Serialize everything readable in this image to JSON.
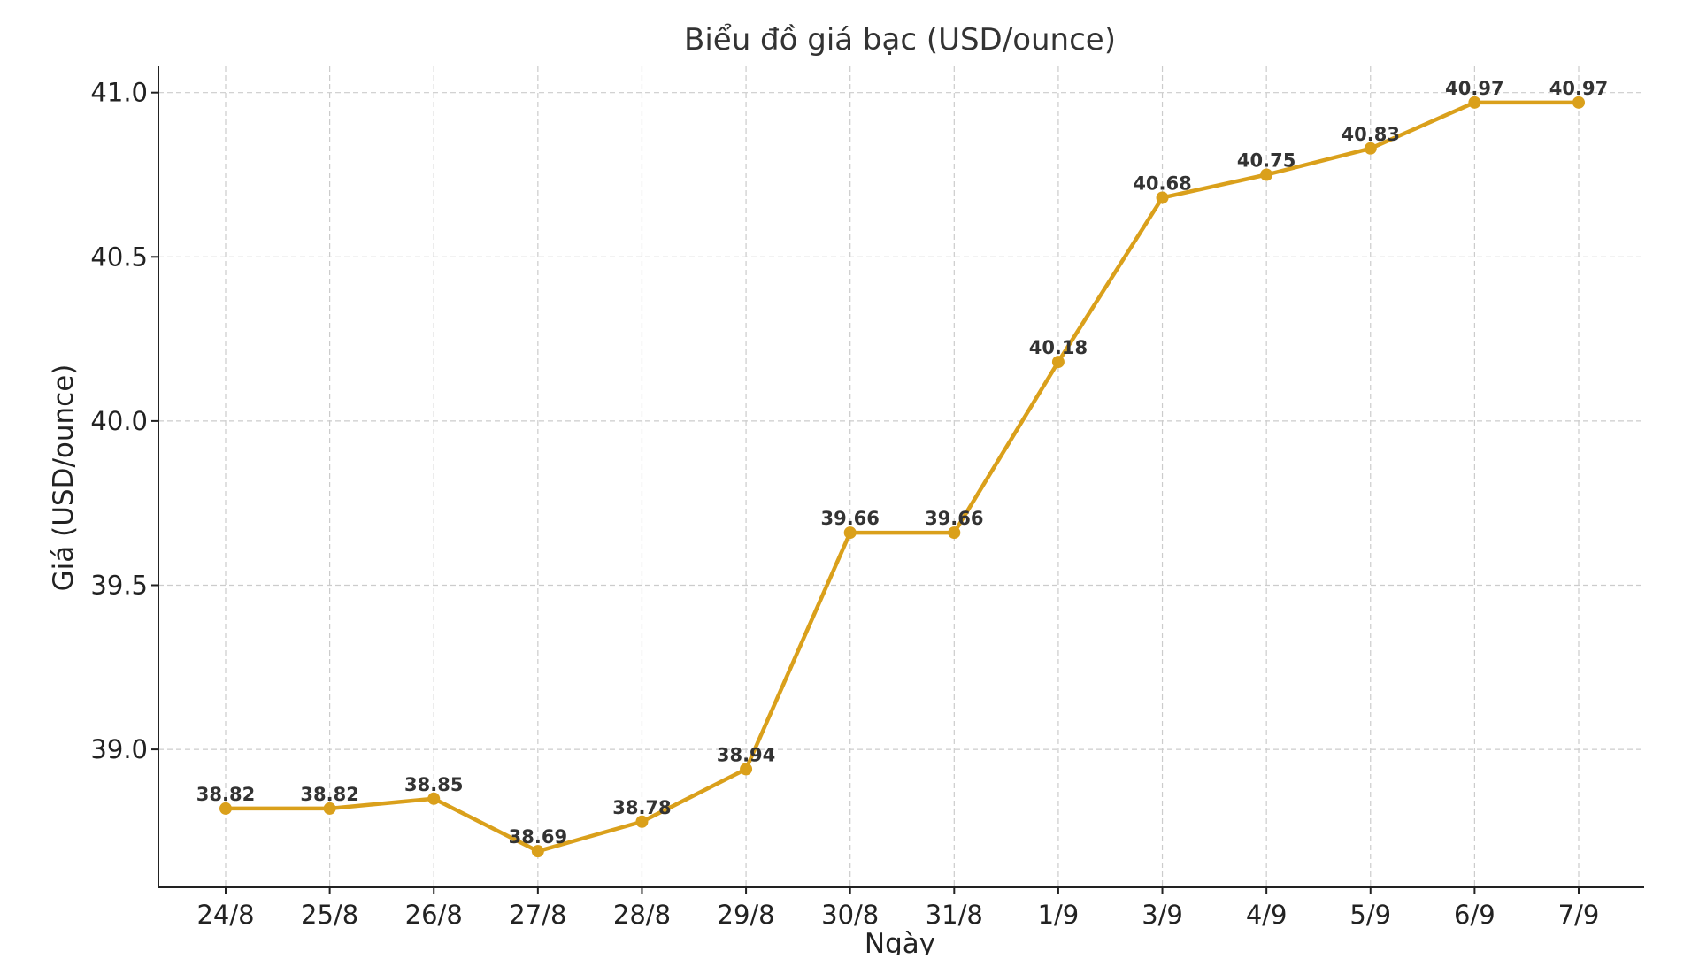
{
  "chart_data": {
    "type": "line",
    "title": "Biểu đồ giá bạc (USD/ounce)",
    "xlabel": "Ngày",
    "ylabel": "Giá (USD/ounce)",
    "categories": [
      "24/8",
      "25/8",
      "26/8",
      "27/8",
      "28/8",
      "29/8",
      "30/8",
      "31/8",
      "1/9",
      "3/9",
      "4/9",
      "5/9",
      "6/9",
      "7/9"
    ],
    "series": [
      {
        "values": [
          38.82,
          38.82,
          38.85,
          38.69,
          38.78,
          38.94,
          39.66,
          39.66,
          40.18,
          40.68,
          40.75,
          40.83,
          40.97,
          40.97
        ],
        "labels": [
          "38.82",
          "38.82",
          "38.85",
          "38.69",
          "38.78",
          "38.94",
          "39.66",
          "39.66",
          "40.18",
          "40.68",
          "40.75",
          "40.83",
          "40.97",
          "40.97"
        ],
        "color": "#DAA01B"
      }
    ],
    "yticks": [
      39.0,
      39.5,
      40.0,
      40.5,
      41.0
    ],
    "ytick_labels": [
      "39.0",
      "39.5",
      "40.0",
      "40.5",
      "41.0"
    ],
    "ylim": [
      38.58,
      41.08
    ],
    "grid": true,
    "legend": "none"
  }
}
